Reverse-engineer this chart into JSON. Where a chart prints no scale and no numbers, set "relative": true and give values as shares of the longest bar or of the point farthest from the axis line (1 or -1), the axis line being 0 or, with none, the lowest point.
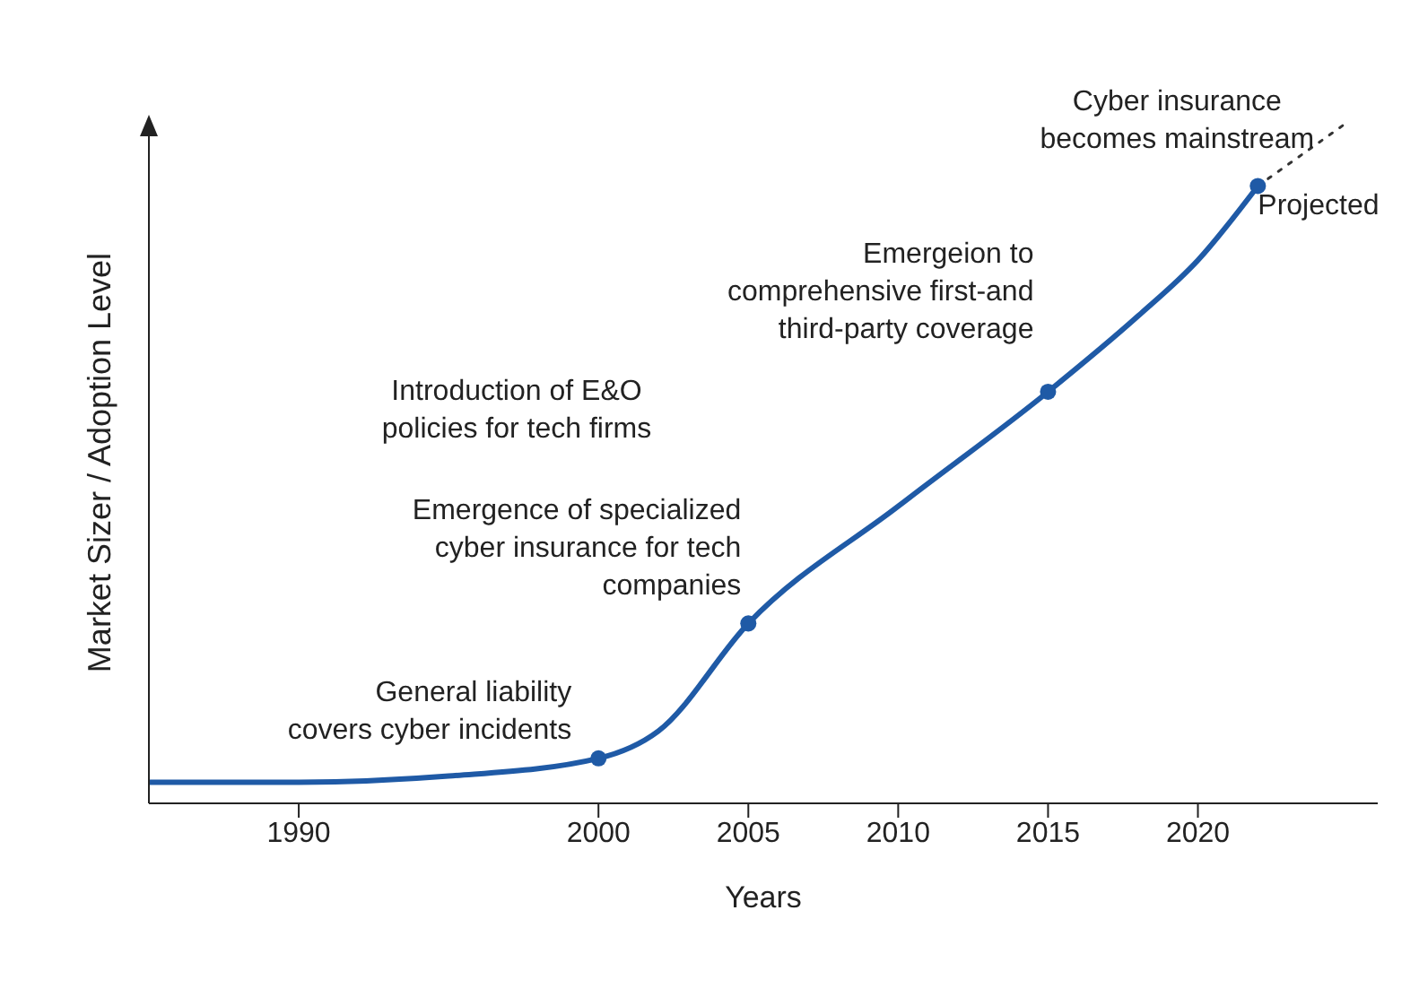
{
  "chart_data": {
    "type": "line",
    "xlabel": "Years",
    "ylabel": "Market Sizer / Adoption Level",
    "relative": true,
    "xlim": [
      1985,
      2026
    ],
    "xticks": [
      1990,
      2000,
      2005,
      2010,
      2015,
      2020
    ],
    "grid": false,
    "series": [
      {
        "color": "#1f5aa6",
        "marker": "none",
        "line_style": "solid",
        "x": [
          1985,
          1990,
          1995,
          2000,
          2002,
          2005,
          2010,
          2015,
          2018,
          2020,
          2022
        ],
        "values": [
          0.031,
          0.031,
          0.04,
          0.066,
          0.106,
          0.264,
          0.436,
          0.604,
          0.715,
          0.797,
          0.906
        ]
      },
      {
        "color": "#333333",
        "marker": "none",
        "line_style": "dotted",
        "x": [
          2022,
          2025
        ],
        "values": [
          0.906,
          1
        ]
      },
      {
        "type": "scatter",
        "color": "#1f5aa6",
        "marker": "circle",
        "x": [
          2000,
          2005,
          2015,
          2022
        ],
        "values": [
          0.066,
          0.264,
          0.604,
          0.906
        ]
      }
    ],
    "annotations": [
      {
        "text": "General liability\ncovers cyber incidents",
        "x": 2000,
        "y": 0.066
      },
      {
        "text": "Emergence of specialized\ncyber insurance for tech\ncompanies",
        "x": 2005,
        "y": 0.264
      },
      "Introduction of E&O\npolicies for tech firms",
      {
        "text": "Emergeion to\ncomprehensive first-and\nthird-party coverage",
        "x": 2015,
        "y": 0.604
      },
      {
        "text": "Cyber insurance\nbecomes mainstream",
        "x": 2022,
        "y": 0.906
      },
      {
        "text": "Projected",
        "x": 2022,
        "y": 0.906
      }
    ]
  }
}
